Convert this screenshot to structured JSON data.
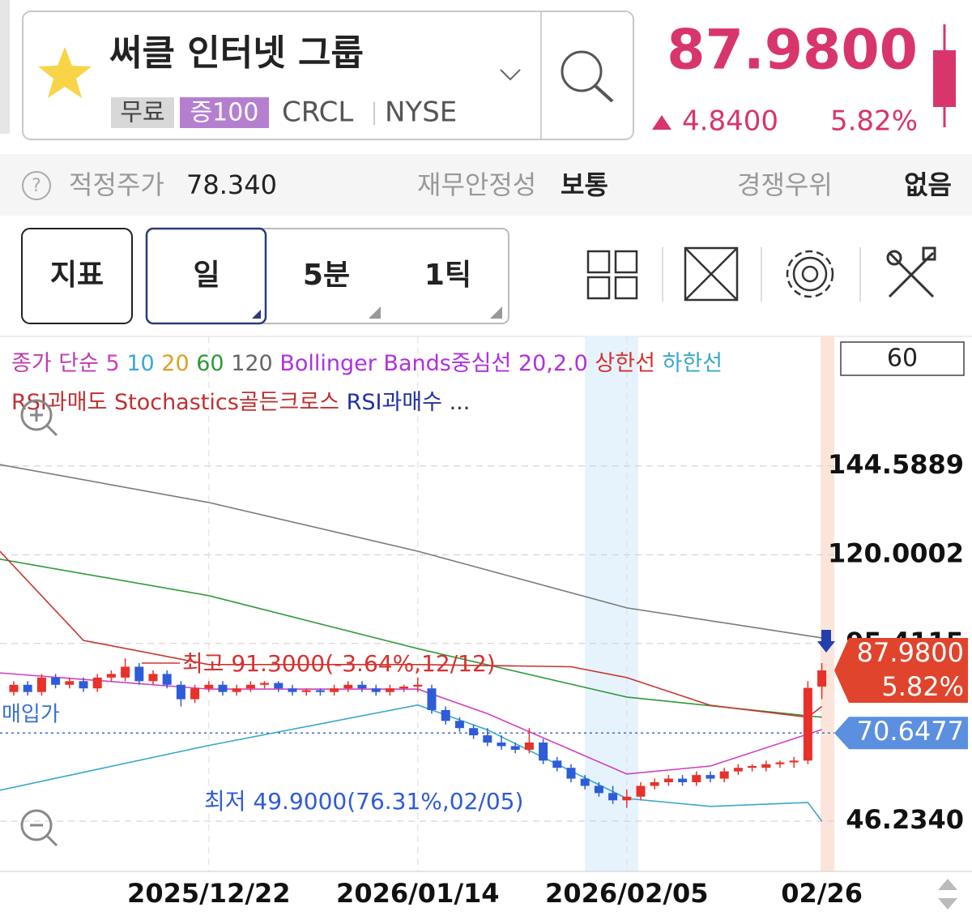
{
  "header": {
    "title": "써클 인터넷 그룹",
    "tags": [
      "무료",
      "증100"
    ],
    "ticker": "CRCL",
    "exchange": "NYSE",
    "price": "87.9800",
    "change": "4.8400",
    "change_pct": "5.82%"
  },
  "info": [
    {
      "label": "적정주가",
      "value": "78.340"
    },
    {
      "label": "재무안정성",
      "value": "보통"
    },
    {
      "label": "경쟁우위",
      "value": "없음"
    }
  ],
  "toolbar": {
    "indicator": "지표",
    "periods": [
      "일",
      "5분",
      "1틱"
    ]
  },
  "chart_data": {
    "type": "candlestick",
    "legend_rows": [
      [
        {
          "text": "종가 단순",
          "color": "#c03ab0"
        },
        {
          "text": "5",
          "color": "#d040c0"
        },
        {
          "text": "10",
          "color": "#3aa8d8"
        },
        {
          "text": "20",
          "color": "#e0a020"
        },
        {
          "text": "60",
          "color": "#2e9a3a"
        },
        {
          "text": "120",
          "color": "#666666"
        },
        {
          "text": "Bollinger Bands중심선 20,2.0",
          "color": "#b030e0"
        },
        {
          "text": "상한선",
          "color": "#d83030"
        },
        {
          "text": "하한선",
          "color": "#3aa8c8"
        }
      ],
      [
        {
          "text": "RSI과매도",
          "color": "#c03030"
        },
        {
          "text": "Stochastics골든크로스",
          "color": "#c03030"
        },
        {
          "text": "RSI과매수",
          "color": "#2030a0"
        },
        {
          "text": "...",
          "color": "#333333"
        }
      ]
    ],
    "period_box": "60",
    "categories": [
      null,
      null,
      null,
      null,
      null,
      null,
      null,
      null,
      null,
      null,
      null,
      null,
      null,
      null,
      "2025/12/22",
      null,
      null,
      null,
      null,
      null,
      null,
      null,
      null,
      null,
      null,
      null,
      null,
      null,
      null,
      "2026/01/14",
      null,
      null,
      null,
      null,
      null,
      null,
      null,
      null,
      null,
      null,
      null,
      null,
      null,
      null,
      "2026/02/05",
      null,
      null,
      null,
      null,
      null,
      null,
      null,
      null,
      null,
      null,
      null,
      null,
      null,
      "02/26"
    ],
    "candles": [
      [
        82,
        85,
        81,
        84
      ],
      [
        84,
        85,
        81,
        82
      ],
      [
        82,
        87,
        81,
        86
      ],
      [
        86,
        87,
        83,
        84
      ],
      [
        84,
        86,
        83,
        85
      ],
      [
        85,
        86,
        82,
        83
      ],
      [
        83,
        87,
        82,
        86
      ],
      [
        86,
        88,
        85,
        87
      ],
      [
        86,
        91.3,
        85,
        89
      ],
      [
        89,
        90,
        84,
        85
      ],
      [
        85,
        88,
        84,
        87
      ],
      [
        87,
        88,
        83,
        84
      ],
      [
        84,
        85,
        78,
        80
      ],
      [
        80,
        84,
        79,
        83
      ],
      [
        83,
        85,
        82,
        84
      ],
      [
        84,
        85,
        81,
        82
      ],
      [
        82,
        84,
        81,
        83
      ],
      [
        83,
        85,
        82,
        84
      ],
      [
        84,
        85,
        83,
        84.5
      ],
      [
        84.5,
        85,
        82,
        83
      ],
      [
        83,
        84,
        81,
        82
      ],
      [
        82,
        83,
        81,
        82.5
      ],
      [
        82.5,
        83,
        81,
        82
      ],
      [
        82,
        84,
        81,
        83
      ],
      [
        83,
        85,
        82,
        84
      ],
      [
        84,
        85,
        82,
        83
      ],
      [
        83,
        84,
        81,
        82
      ],
      [
        82,
        84,
        81,
        83
      ],
      [
        83,
        84,
        82,
        83.5
      ],
      [
        83.5,
        86,
        82,
        84
      ],
      [
        83,
        84,
        76,
        77
      ],
      [
        77,
        78,
        73,
        74
      ],
      [
        74,
        75,
        71,
        72
      ],
      [
        72,
        73,
        69,
        70
      ],
      [
        70,
        72,
        67,
        68
      ],
      [
        68,
        70,
        66,
        67
      ],
      [
        67,
        68,
        65,
        66
      ],
      [
        66,
        72,
        65,
        68
      ],
      [
        68,
        69,
        62,
        63
      ],
      [
        63,
        64,
        60,
        61
      ],
      [
        61,
        62,
        57,
        58
      ],
      [
        58,
        59,
        55,
        56
      ],
      [
        56,
        57,
        53,
        54
      ],
      [
        54,
        56,
        51,
        52
      ],
      [
        52,
        55,
        49.9,
        53
      ],
      [
        53,
        57,
        52,
        56
      ],
      [
        56,
        58,
        55,
        57
      ],
      [
        57,
        59,
        56,
        58
      ],
      [
        58,
        59,
        56,
        57
      ],
      [
        57,
        60,
        56,
        59
      ],
      [
        59,
        60,
        57,
        58
      ],
      [
        58,
        61,
        57,
        60
      ],
      [
        60,
        62,
        59,
        61
      ],
      [
        61,
        62,
        60,
        61.5
      ],
      [
        61,
        63,
        60,
        62
      ],
      [
        62,
        63,
        61,
        62.5
      ],
      [
        62.5,
        64,
        61,
        63
      ],
      [
        63,
        85,
        62,
        83.14
      ],
      [
        83.5,
        90,
        80,
        87.98
      ]
    ],
    "up_color": "#e8312a",
    "down_color": "#2e5bd8",
    "lines": [
      {
        "color": "#7a7a7a",
        "x": [
          -1,
          14,
          29,
          44,
          58
        ],
        "values": [
          145,
          134.5,
          121,
          105.3,
          97
        ]
      },
      {
        "color": "#2e9a3a",
        "x": [
          -1,
          14,
          29,
          44,
          58
        ],
        "values": [
          118.8,
          108.7,
          94,
          80.6,
          75
        ]
      },
      {
        "color": "#c8342a",
        "x": [
          -1,
          5,
          14,
          29,
          40,
          44,
          50,
          57,
          58
        ],
        "values": [
          121,
          96.3,
          89.6,
          89.6,
          89,
          86,
          78.3,
          75,
          78
        ]
      },
      {
        "color": "#d040c0",
        "x": [
          -1,
          14,
          29,
          34,
          44,
          50,
          58
        ],
        "values": [
          87.3,
          82.8,
          82.8,
          76,
          59.3,
          61.5,
          71.6
        ]
      },
      {
        "color": "#3aa8c8",
        "x": [
          -1,
          14,
          29,
          34,
          44,
          50,
          57,
          58
        ],
        "values": [
          54.8,
          67.2,
          78.4,
          71.5,
          52.5,
          50.3,
          51.4,
          46.2
        ]
      }
    ],
    "ylim": [
      32.3,
      180.5
    ],
    "yticks": [
      144.5889,
      120.0002,
      95.4115,
      {
        "value": 46.234,
        "label": "46.2340"
      }
    ],
    "grid": true,
    "high_note": "최고 91.3000(-3.64%,12/12)",
    "low_note": "최저 49.9000(76.31%,02/05)",
    "purchase": {
      "label": "매입가",
      "value": 70.6477,
      "value_label": "70.6477"
    },
    "last_price_label": "87.9800",
    "last_change_label": "5.82%"
  }
}
